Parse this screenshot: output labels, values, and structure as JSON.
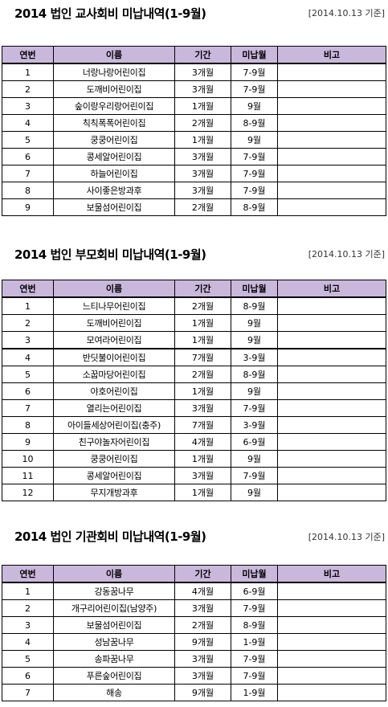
{
  "headers": [
    "연번",
    "이름",
    "기간",
    "미납월",
    "비고"
  ],
  "sections": [
    {
      "title": "2014 법인 교사회비 미납내역(1-9월)",
      "asof": "[2014.10.13 기준]",
      "rows": [
        [
          "1",
          "너랑나랑어린이집",
          "3개월",
          "7-9월",
          ""
        ],
        [
          "2",
          "도깨비어린이집",
          "3개월",
          "7-9월",
          ""
        ],
        [
          "3",
          "숲이랑우리랑어린이집",
          "1개월",
          "9월",
          ""
        ],
        [
          "4",
          "칙칙폭폭어린이집",
          "2개월",
          "8-9월",
          ""
        ],
        [
          "5",
          "쿵쿵어린이집",
          "1개월",
          "9월",
          ""
        ],
        [
          "6",
          "콩세알어린이집",
          "3개월",
          "7-9월",
          ""
        ],
        [
          "7",
          "하늘어린이집",
          "3개월",
          "7-9월",
          ""
        ],
        [
          "8",
          "사이좋은방과후",
          "3개월",
          "7-9월",
          ""
        ],
        [
          "9",
          "보물섬어린이집",
          "2개월",
          "8-9월",
          ""
        ]
      ]
    },
    {
      "title": "2014 법인 부모회비 미납내역(1-9월)",
      "asof": "[2014.10.13 기준]",
      "rows": [
        [
          "1",
          "느티나무어린이집",
          "2개월",
          "8-9월",
          ""
        ],
        [
          "2",
          "도깨비어린이집",
          "1개월",
          "9월",
          ""
        ],
        [
          "3",
          "모여라어린이집",
          "1개월",
          "9월",
          ""
        ],
        [
          "4",
          "반딧불이어린이집",
          "7개월",
          "3-9월",
          ""
        ],
        [
          "5",
          "소꿉마당어린이집",
          "2개월",
          "8-9월",
          ""
        ],
        [
          "6",
          "야호어린이집",
          "1개월",
          "9월",
          ""
        ],
        [
          "7",
          "열리는어린이집",
          "3개월",
          "7-9월",
          ""
        ],
        [
          "8",
          "아이들세상어린이집(충주)",
          "7개월",
          "3-9월",
          ""
        ],
        [
          "9",
          "친구야놀자어린이집",
          "4개월",
          "6-9월",
          ""
        ],
        [
          "10",
          "쿵쿵어린이집",
          "1개월",
          "9월",
          ""
        ],
        [
          "11",
          "콩세알어린이집",
          "3개월",
          "7-9월",
          ""
        ],
        [
          "12",
          "무지개방과후",
          "1개월",
          "9월",
          ""
        ]
      ]
    },
    {
      "title": "2014 법인 기관회비 미납내역(1-9월)",
      "asof": "[2014.10.13 기준]",
      "rows": [
        [
          "1",
          "강동꿈나무",
          "4개월",
          "6-9월",
          ""
        ],
        [
          "2",
          "개구리어린이집(남양주)",
          "3개월",
          "7-9월",
          ""
        ],
        [
          "3",
          "보물섬어린이집",
          "2개월",
          "8-9월",
          ""
        ],
        [
          "4",
          "성남꿈나무",
          "9개월",
          "1-9월",
          ""
        ],
        [
          "5",
          "송파꿈나무",
          "3개월",
          "7-9월",
          ""
        ],
        [
          "6",
          "푸른숲어린이집",
          "3개월",
          "7-9월",
          ""
        ],
        [
          "7",
          "해송",
          "9개월",
          "1-9월",
          ""
        ]
      ]
    }
  ]
}
